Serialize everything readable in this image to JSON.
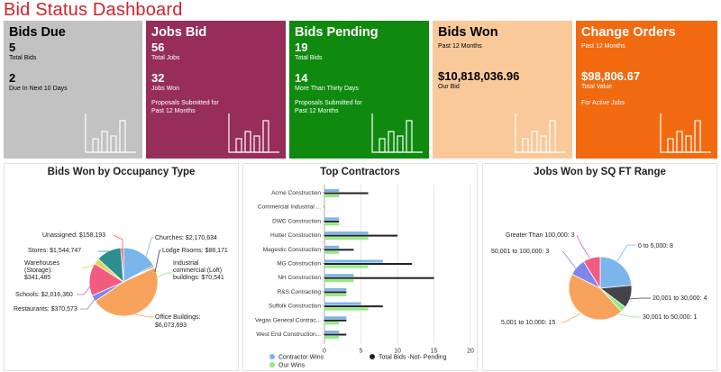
{
  "page": {
    "title": "Bid Status Dashboard"
  },
  "tiles": {
    "bids_due": {
      "title": "Bids Due",
      "value1": "5",
      "label1": "Total Bids",
      "value2": "2",
      "label2": "Due In Next 10 Days",
      "color": "#c2c2c2"
    },
    "jobs_bid": {
      "title": "Jobs Bid",
      "value1": "56",
      "label1": "Total Jobs",
      "value2": "32",
      "label2": "Jobs Won",
      "note1": "Proposals Submitted for",
      "note2": "Past 12 Months",
      "color": "#962d5a"
    },
    "bids_pending": {
      "title": "Bids Pending",
      "value1": "19",
      "label1": "Total Bids",
      "value2": "14",
      "label2": "More Than Thirty Days",
      "note1": "Proposals Submitted for",
      "note2": "Past 12 Months",
      "color": "#0f8a0f"
    },
    "bids_won": {
      "title": "Bids Won",
      "subtitle": "Past 12 Months",
      "value": "$10,818,036.96",
      "label": "Our Bid",
      "color": "#f9c99a"
    },
    "change_orders": {
      "title": "Change Orders",
      "subtitle": "Past 12 Months",
      "value": "$98,806.67",
      "label": "Total Value",
      "note": "For Active Jobs",
      "color": "#f26a10"
    }
  },
  "occupancy": {
    "title": "Bids Won by Occupancy Type",
    "labels": {
      "unassigned": "Unassigned: $158,193",
      "stores": "Stores: $1,544,747",
      "warehouses1": "Warehouses",
      "warehouses2": "(Storage):",
      "warehouses3": "$341,485",
      "schools": "Schools: $2,016,360",
      "restaurants": "Restaurants: $370,573",
      "churches": "Churches: $2,170,634",
      "lodge": "Lodge Rooms: $88,171",
      "industrial1": "Industrial",
      "industrial2": "commercial (Loft)",
      "industrial3": "buildings: $70,541",
      "office1": "Office Buildings:",
      "office2": "$6,073,693"
    }
  },
  "contractors": {
    "title": "Top Contractors",
    "legend": {
      "contractor_wins": "Contractor Wins",
      "our_wins": "Our Wins",
      "total_bids": "Total Bids -Not- Pending"
    }
  },
  "sqft": {
    "title": "Jobs Won by SQ FT Range",
    "labels": {
      "gt100k": "Greater Than 100,000: 3",
      "r50_100": "50,001 to 100,000: 3",
      "r0_5": "0 to 5,000: 8",
      "r20_30": "20,001 to 30,000: 4",
      "r30_50": "30,001 to 50,000: 1",
      "r5_10": "5,001 to 10,000: 15"
    }
  },
  "chart_data": [
    {
      "type": "pie",
      "title": "Bids Won by Occupancy Type",
      "labels": [
        "Churches",
        "Lodge Rooms",
        "Industrial commercial (Loft) buildings",
        "Office Buildings",
        "Restaurants",
        "Schools",
        "Warehouses (Storage)",
        "Stores",
        "Unassigned"
      ],
      "values": [
        2170634,
        88171,
        70541,
        6073693,
        370573,
        2016360,
        341485,
        1544747,
        158193
      ],
      "colors": [
        "#7cb5ec",
        "#434348",
        "#90ed7d",
        "#f7a35c",
        "#8085e9",
        "#f15c80",
        "#e4d354",
        "#2b908f",
        "#f45b5b"
      ]
    },
    {
      "type": "bar",
      "title": "Top Contractors",
      "orientation": "horizontal",
      "categories": [
        "Acme Construction",
        "Commercial Industrial ...",
        "DWC Construction",
        "Hutter Construction",
        "Magestic Construction",
        "MG Construction",
        "NH Construction",
        "R&S Contracting",
        "Suffolk Construction",
        "Vegas General Contrac...",
        "West End Construction..."
      ],
      "series": [
        {
          "name": "Contractor Wins",
          "color": "#7cb5ec",
          "values": [
            2,
            0,
            2,
            6,
            2,
            8,
            4,
            3,
            5,
            3,
            2
          ]
        },
        {
          "name": "Total Bids -Not- Pending",
          "color": "#222222",
          "values": [
            6,
            0,
            2,
            10,
            4,
            12,
            15,
            3,
            8,
            3,
            3
          ]
        },
        {
          "name": "Our Wins",
          "color": "#90ed7d",
          "values": [
            2,
            0,
            2,
            6,
            2,
            6,
            4,
            3,
            6,
            2,
            2
          ]
        }
      ],
      "xlim": [
        0,
        20
      ],
      "xticks": [
        "0",
        "5",
        "10",
        "15",
        "20"
      ]
    },
    {
      "type": "pie",
      "title": "Jobs Won by SQ FT Range",
      "labels": [
        "0 to 5,000",
        "20,001 to 30,000",
        "30,001 to 50,000",
        "5,001 to 10,000",
        "50,001 to 100,000",
        "Greater Than 100,000"
      ],
      "values": [
        8,
        4,
        1,
        15,
        3,
        3
      ],
      "colors": [
        "#7cb5ec",
        "#434348",
        "#90ed7d",
        "#f7a35c",
        "#8085e9",
        "#f15c80"
      ]
    }
  ]
}
